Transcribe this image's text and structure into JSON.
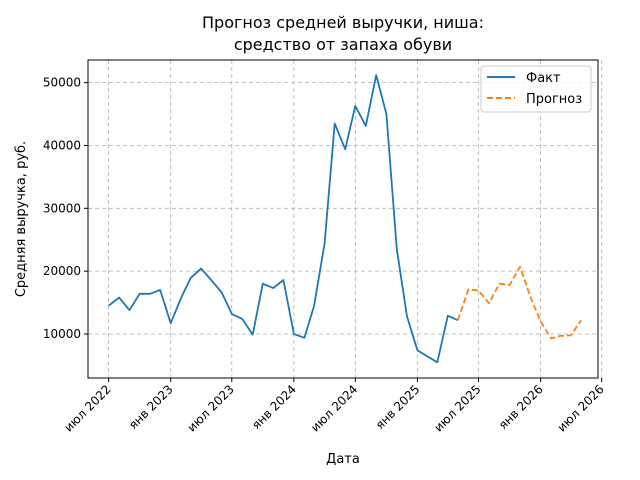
{
  "chart_data": {
    "type": "line",
    "title_line1": "Прогноз средней выручки, ниша:",
    "title_line2": "средство от запаха обуви",
    "xlabel": "Дата",
    "ylabel": "Средняя выручка, руб.",
    "ylim": [
      3000,
      53600
    ],
    "yticks": [
      10000,
      20000,
      30000,
      40000,
      50000
    ],
    "ytick_labels": [
      "10000",
      "20000",
      "30000",
      "40000",
      "50000"
    ],
    "xlim": [
      "2022-05-01",
      "2026-06-20"
    ],
    "xticks": [
      "2022-07-01",
      "2023-01-01",
      "2023-07-01",
      "2024-01-01",
      "2024-07-01",
      "2025-01-01",
      "2025-07-01",
      "2026-01-01",
      "2026-07-01"
    ],
    "xtick_labels": [
      "июл 2022",
      "янв 2023",
      "июл 2023",
      "янв 2024",
      "июл 2024",
      "янв 2025",
      "июл 2025",
      "янв 2026",
      "июл 2026"
    ],
    "grid": true,
    "legend_position": "top-right",
    "series": [
      {
        "name": "Факт",
        "color": "#1f77b4",
        "dash": "solid",
        "x": [
          "2022-07-01",
          "2022-08-01",
          "2022-09-01",
          "2022-10-01",
          "2022-11-01",
          "2022-12-01",
          "2023-01-01",
          "2023-02-01",
          "2023-03-01",
          "2023-04-01",
          "2023-05-01",
          "2023-06-01",
          "2023-07-01",
          "2023-08-01",
          "2023-09-01",
          "2023-10-01",
          "2023-11-01",
          "2023-12-01",
          "2024-01-01",
          "2024-02-01",
          "2024-03-01",
          "2024-04-01",
          "2024-05-01",
          "2024-06-01",
          "2024-07-01",
          "2024-08-01",
          "2024-09-01",
          "2024-10-01",
          "2024-11-01",
          "2024-12-01",
          "2025-01-01",
          "2025-02-01",
          "2025-03-01",
          "2025-04-01",
          "2025-05-01"
        ],
        "y": [
          14500,
          15800,
          13800,
          16400,
          16400,
          17000,
          11700,
          15800,
          18900,
          20400,
          18600,
          16600,
          13200,
          12400,
          9900,
          18000,
          17300,
          18600,
          10000,
          9400,
          14500,
          24400,
          43500,
          39400,
          46300,
          43100,
          51200,
          45000,
          23500,
          12800,
          7400,
          6400,
          5500,
          12900,
          12200
        ]
      },
      {
        "name": "Прогноз",
        "color": "#ff7f0e",
        "dash": "dashed",
        "x": [
          "2025-05-01",
          "2025-06-01",
          "2025-07-01",
          "2025-08-01",
          "2025-09-01",
          "2025-10-01",
          "2025-11-01",
          "2025-12-01",
          "2026-01-01",
          "2026-02-01",
          "2026-03-01",
          "2026-04-01",
          "2026-05-01"
        ],
        "y": [
          12200,
          17100,
          16900,
          14900,
          18000,
          17800,
          20700,
          16000,
          12000,
          9300,
          9700,
          9800,
          12200
        ]
      }
    ]
  }
}
